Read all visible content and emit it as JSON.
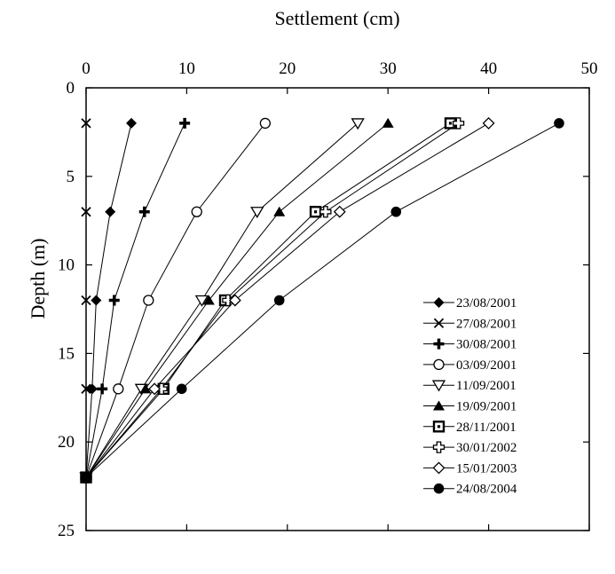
{
  "chart_data": {
    "type": "line",
    "xlabel": "Settlement (cm)",
    "ylabel": "Depth (m)",
    "xlim": [
      0,
      50
    ],
    "ylim": [
      0,
      25
    ],
    "x_axis_position": "top",
    "y_axis_inverted": true,
    "grid": false,
    "legend_position": "bottom-right",
    "x_ticks": [
      0,
      10,
      20,
      30,
      40,
      50
    ],
    "y_ticks": [
      0,
      5,
      10,
      15,
      20,
      25
    ],
    "depths": [
      2,
      7,
      12,
      17,
      22
    ],
    "series": [
      {
        "name": "23/08/2001",
        "marker": "diamond-filled",
        "settlement": [
          4.5,
          2.4,
          1.0,
          0.6,
          0
        ]
      },
      {
        "name": "27/08/2001",
        "marker": "x",
        "settlement": [
          0,
          0,
          0,
          0,
          0
        ]
      },
      {
        "name": "30/08/2001",
        "marker": "plus-bold",
        "settlement": [
          9.8,
          5.8,
          2.8,
          1.6,
          0
        ]
      },
      {
        "name": "03/09/2001",
        "marker": "circle-open",
        "settlement": [
          17.8,
          11.0,
          6.2,
          3.2,
          0
        ]
      },
      {
        "name": "11/09/2001",
        "marker": "triangle-down-open",
        "settlement": [
          27.0,
          17.0,
          11.5,
          5.5,
          0
        ]
      },
      {
        "name": "19/09/2001",
        "marker": "triangle-up-filled",
        "settlement": [
          30.0,
          19.2,
          12.2,
          5.9,
          0
        ]
      },
      {
        "name": "28/11/2001",
        "marker": "square-dot",
        "settlement": [
          36.2,
          22.8,
          13.8,
          7.7,
          0
        ]
      },
      {
        "name": "30/01/2002",
        "marker": "plus-open",
        "settlement": [
          37.0,
          23.8,
          14.1,
          7.5,
          0
        ]
      },
      {
        "name": "15/01/2003",
        "marker": "diamond-open",
        "settlement": [
          40.0,
          25.2,
          14.8,
          6.8,
          0
        ]
      },
      {
        "name": "24/08/2004",
        "marker": "circle-filled",
        "settlement": [
          47.0,
          30.8,
          19.2,
          9.5,
          0
        ]
      }
    ]
  }
}
